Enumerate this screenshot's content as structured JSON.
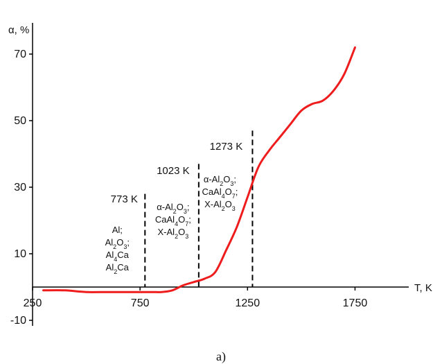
{
  "chart_data": {
    "type": "line",
    "xlabel": "T, K",
    "ylabel": "α, %",
    "xlim": [
      250,
      1850
    ],
    "ylim": [
      -12,
      80
    ],
    "x_ticks": [
      250,
      750,
      1250,
      1750
    ],
    "y_ticks": [
      -10,
      10,
      30,
      50,
      70
    ],
    "series": [
      {
        "color": "#ee1c1c",
        "x": [
          300,
          400,
          500,
          600,
          700,
          800,
          850,
          900,
          950,
          1000,
          1050,
          1100,
          1150,
          1200,
          1250,
          1300,
          1350,
          1400,
          1450,
          1500,
          1550,
          1600,
          1650,
          1700,
          1750
        ],
        "y": [
          -1,
          -1,
          -1.5,
          -1.5,
          -1.5,
          -1.5,
          -1.5,
          -1,
          0.5,
          1.5,
          2.5,
          4.5,
          11,
          18,
          27,
          36,
          41,
          45,
          49,
          53,
          55,
          56,
          59,
          64,
          72
        ]
      }
    ],
    "vlines": [
      {
        "x": 773,
        "top": 28,
        "label": "773 K",
        "phases": [
          "Al;",
          "Al2O3;",
          "Al4Ca",
          "Al2Ca"
        ]
      },
      {
        "x": 1023,
        "top": 37,
        "label": "1023 K",
        "phases": [
          "α-Al2O3;",
          "CaAl4O7;",
          "X-Al2O3"
        ]
      },
      {
        "x": 1273,
        "top": 47,
        "label": "1273 K",
        "phases": [
          "α-Al2O3;",
          "CaAl4O7;",
          "X-Al2O3"
        ]
      }
    ],
    "grid": false
  },
  "caption": "a)"
}
